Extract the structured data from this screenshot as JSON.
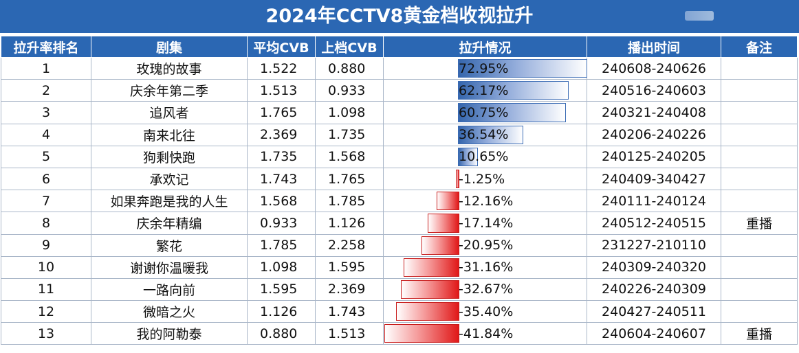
{
  "title": "2024年CCTV8黄金档收视拉升",
  "headers": [
    "拉升率排名",
    "剧集",
    "平均CVB",
    "上档CVB",
    "拉升情况",
    "播出时间",
    "备注"
  ],
  "rows": [
    {
      "rank": "1",
      "name": "玫瑰的故事",
      "avg": "1.522",
      "prev": "0.880",
      "pct": "72.95%",
      "value": 72.95,
      "time": "240608-240626",
      "note": ""
    },
    {
      "rank": "2",
      "name": "庆余年第二季",
      "avg": "1.513",
      "prev": "0.933",
      "pct": "62.17%",
      "value": 62.17,
      "time": "240516-240603",
      "note": ""
    },
    {
      "rank": "3",
      "name": "追风者",
      "avg": "1.765",
      "prev": "1.098",
      "pct": "60.75%",
      "value": 60.75,
      "time": "240321-240408",
      "note": ""
    },
    {
      "rank": "4",
      "name": "南来北往",
      "avg": "2.369",
      "prev": "1.735",
      "pct": "36.54%",
      "value": 36.54,
      "time": "240206-240226",
      "note": ""
    },
    {
      "rank": "5",
      "name": "狗剩快跑",
      "avg": "1.735",
      "prev": "1.568",
      "pct": "10.65%",
      "value": 10.65,
      "time": "240125-240205",
      "note": ""
    },
    {
      "rank": "6",
      "name": "承欢记",
      "avg": "1.743",
      "prev": "1.765",
      "pct": "-1.25%",
      "value": -1.25,
      "time": "240409-340427",
      "note": ""
    },
    {
      "rank": "7",
      "name": "如果奔跑是我的人生",
      "avg": "1.568",
      "prev": "1.785",
      "pct": "-12.16%",
      "value": -12.16,
      "time": "240111-240124",
      "note": ""
    },
    {
      "rank": "8",
      "name": "庆余年精编",
      "avg": "0.933",
      "prev": "1.126",
      "pct": "-17.14%",
      "value": -17.14,
      "time": "240512-240515",
      "note": "重播"
    },
    {
      "rank": "9",
      "name": "繁花",
      "avg": "1.785",
      "prev": "2.258",
      "pct": "-20.95%",
      "value": -20.95,
      "time": "231227-210110",
      "note": ""
    },
    {
      "rank": "10",
      "name": "谢谢你温暖我",
      "avg": "1.098",
      "prev": "1.595",
      "pct": "-31.16%",
      "value": -31.16,
      "time": "240309-240320",
      "note": ""
    },
    {
      "rank": "11",
      "name": "一路向前",
      "avg": "1.595",
      "prev": "2.369",
      "pct": "-32.67%",
      "value": -32.67,
      "time": "240226-240309",
      "note": ""
    },
    {
      "rank": "12",
      "name": "微暗之火",
      "avg": "1.126",
      "prev": "1.743",
      "pct": "-35.40%",
      "value": -35.4,
      "time": "240427-240511",
      "note": ""
    },
    {
      "rank": "13",
      "name": "我的阿勒泰",
      "avg": "0.880",
      "prev": "1.513",
      "pct": "-41.84%",
      "value": -41.84,
      "time": "240604-240607",
      "note": "重播"
    }
  ],
  "colors": {
    "header": "#2b67b3",
    "positive_bar": "#3566ad",
    "negative_bar": "#e01818"
  }
}
